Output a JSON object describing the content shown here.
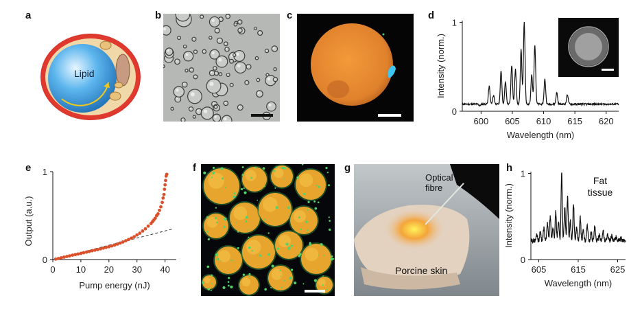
{
  "panels": {
    "a": {
      "letter": "a",
      "label": "Lipid"
    },
    "b": {
      "letter": "b"
    },
    "c": {
      "letter": "c"
    },
    "d": {
      "letter": "d"
    },
    "e": {
      "letter": "e"
    },
    "f": {
      "letter": "f"
    },
    "g": {
      "letter": "g",
      "fibre_label": "Optical\nfibre",
      "skin_label": "Porcine skin"
    },
    "h": {
      "letter": "h",
      "annotation": "Fat\ntissue"
    }
  },
  "colors": {
    "spectrum_line": "#111111",
    "output_points": "#d9502a",
    "fit_line": "#333333",
    "cell_outer": "#d7262a",
    "cell_body": "#f1d8a8",
    "lipid": "#3e9fe0"
  },
  "chart_data": [
    {
      "id": "d",
      "type": "line",
      "xlabel": "Wavelength (nm)",
      "ylabel": "Intensity (norm.)",
      "xlim": [
        597,
        622
      ],
      "ylim": [
        0,
        1.02
      ],
      "xticks": [
        600,
        605,
        610,
        615,
        620
      ],
      "yticks": [
        0,
        1
      ],
      "peaks": [
        {
          "x": 599.8,
          "y": 0.06
        },
        {
          "x": 601.3,
          "y": 0.28
        },
        {
          "x": 602.0,
          "y": 0.18
        },
        {
          "x": 603.2,
          "y": 0.45
        },
        {
          "x": 603.9,
          "y": 0.33
        },
        {
          "x": 604.9,
          "y": 0.52
        },
        {
          "x": 605.5,
          "y": 0.47
        },
        {
          "x": 606.4,
          "y": 0.69
        },
        {
          "x": 606.9,
          "y": 1.0
        },
        {
          "x": 608.1,
          "y": 0.41
        },
        {
          "x": 608.6,
          "y": 0.75
        },
        {
          "x": 610.2,
          "y": 0.36
        },
        {
          "x": 612.1,
          "y": 0.21
        },
        {
          "x": 613.8,
          "y": 0.19
        }
      ],
      "baseline": 0.08
    },
    {
      "id": "e",
      "type": "scatter",
      "xlabel": "Pump energy (nJ)",
      "ylabel": "Output (a.u.)",
      "xlim": [
        0,
        44
      ],
      "ylim": [
        0,
        1
      ],
      "xticks": [
        0,
        10,
        20,
        30,
        40
      ],
      "yticks": [
        0,
        1
      ],
      "points": [
        [
          1,
          0.005
        ],
        [
          2,
          0.012
        ],
        [
          3,
          0.02
        ],
        [
          4,
          0.028
        ],
        [
          5,
          0.035
        ],
        [
          6,
          0.042
        ],
        [
          7,
          0.05
        ],
        [
          8,
          0.056
        ],
        [
          9,
          0.063
        ],
        [
          10,
          0.07
        ],
        [
          11,
          0.078
        ],
        [
          12,
          0.085
        ],
        [
          13,
          0.092
        ],
        [
          14,
          0.1
        ],
        [
          15,
          0.107
        ],
        [
          16,
          0.114
        ],
        [
          17,
          0.122
        ],
        [
          18,
          0.13
        ],
        [
          19,
          0.138
        ],
        [
          20,
          0.146
        ],
        [
          21,
          0.155
        ],
        [
          22,
          0.165
        ],
        [
          23,
          0.176
        ],
        [
          24,
          0.188
        ],
        [
          25,
          0.2
        ],
        [
          26,
          0.214
        ],
        [
          27,
          0.228
        ],
        [
          28,
          0.244
        ],
        [
          29,
          0.26
        ],
        [
          30,
          0.28
        ],
        [
          31,
          0.3
        ],
        [
          32,
          0.325
        ],
        [
          33,
          0.35
        ],
        [
          34,
          0.38
        ],
        [
          35,
          0.41
        ],
        [
          35.5,
          0.43
        ],
        [
          36,
          0.45
        ],
        [
          36.5,
          0.47
        ],
        [
          37,
          0.5
        ],
        [
          37.5,
          0.52
        ],
        [
          38,
          0.56
        ],
        [
          38.5,
          0.6
        ],
        [
          39,
          0.65
        ],
        [
          39.3,
          0.7
        ],
        [
          39.6,
          0.74
        ],
        [
          39.8,
          0.8
        ],
        [
          40.0,
          0.85
        ],
        [
          40.2,
          0.9
        ],
        [
          40.4,
          0.95
        ],
        [
          40.6,
          0.97
        ]
      ],
      "fit": [
        [
          0,
          0.0
        ],
        [
          43,
          0.35
        ]
      ]
    },
    {
      "id": "h",
      "type": "line",
      "xlabel": "Wavelength (nm)",
      "ylabel": "Intensity (norm.)",
      "xlim": [
        603,
        627
      ],
      "ylim": [
        0,
        1.02
      ],
      "xticks": [
        605,
        615,
        625
      ],
      "yticks": [
        0,
        1
      ],
      "baseline": 0.22,
      "peaks": [
        {
          "x": 604.5,
          "y": 0.3
        },
        {
          "x": 605.4,
          "y": 0.33
        },
        {
          "x": 606.3,
          "y": 0.37
        },
        {
          "x": 607.2,
          "y": 0.42
        },
        {
          "x": 607.9,
          "y": 0.49
        },
        {
          "x": 608.6,
          "y": 0.38
        },
        {
          "x": 609.3,
          "y": 0.55
        },
        {
          "x": 610.0,
          "y": 0.45
        },
        {
          "x": 610.8,
          "y": 1.0
        },
        {
          "x": 611.6,
          "y": 0.6
        },
        {
          "x": 612.3,
          "y": 0.72
        },
        {
          "x": 613.0,
          "y": 0.45
        },
        {
          "x": 613.8,
          "y": 0.65
        },
        {
          "x": 614.6,
          "y": 0.38
        },
        {
          "x": 615.5,
          "y": 0.5
        },
        {
          "x": 616.3,
          "y": 0.34
        },
        {
          "x": 617.3,
          "y": 0.4
        },
        {
          "x": 618.3,
          "y": 0.32
        },
        {
          "x": 619.2,
          "y": 0.38
        },
        {
          "x": 620.3,
          "y": 0.3
        },
        {
          "x": 621.3,
          "y": 0.34
        },
        {
          "x": 622.4,
          "y": 0.29
        },
        {
          "x": 623.5,
          "y": 0.27
        },
        {
          "x": 624.6,
          "y": 0.26
        },
        {
          "x": 625.8,
          "y": 0.25
        }
      ]
    }
  ]
}
